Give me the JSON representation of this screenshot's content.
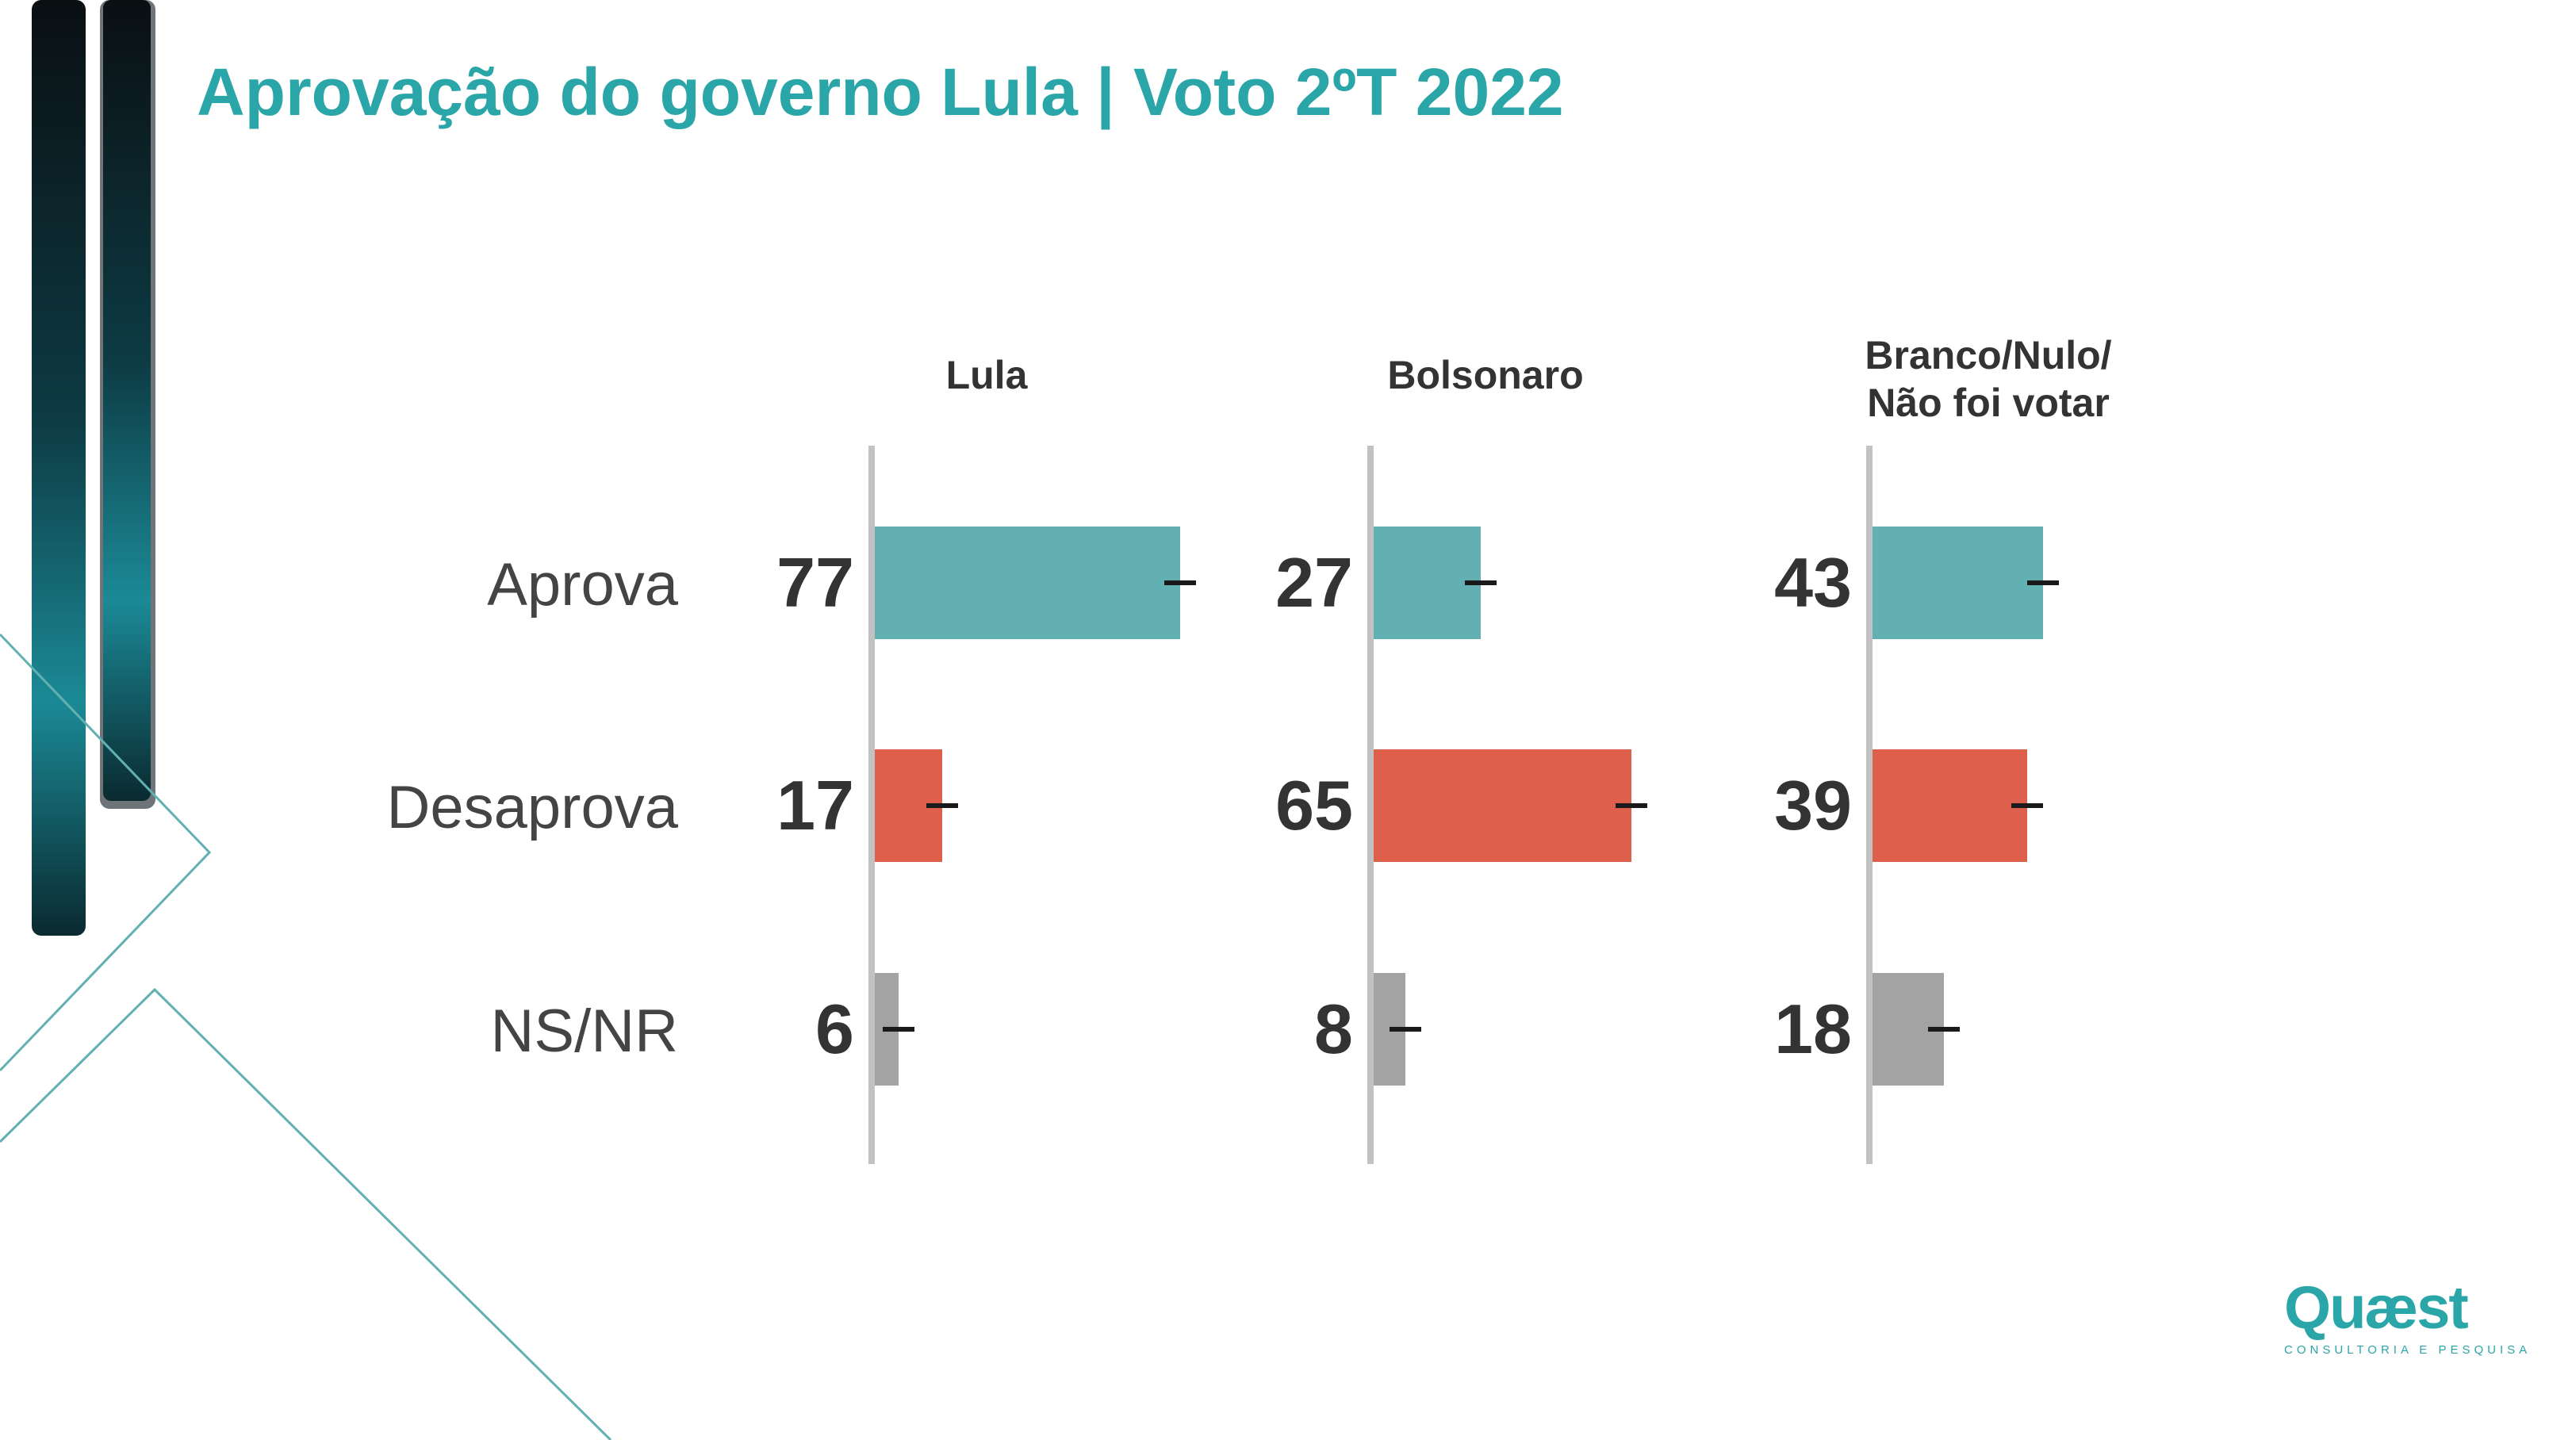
{
  "header": {
    "title": "Aprovação do governo Lula | Voto 2ºT 2022"
  },
  "chart_data": {
    "type": "bar",
    "orientation": "horizontal",
    "categories": [
      "Aprova",
      "Desaprova",
      "NS/NR"
    ],
    "panels": [
      {
        "name": "Lula",
        "values": [
          77,
          17,
          6
        ],
        "labels": [
          "77",
          "17",
          "6"
        ]
      },
      {
        "name": "Bolsonaro",
        "values": [
          27,
          65,
          8
        ],
        "labels": [
          "27",
          "65",
          "8"
        ]
      },
      {
        "name": "Branco/Nulo/\nNão foi votar",
        "values": [
          43,
          39,
          18
        ],
        "labels": [
          "43",
          "39",
          "18"
        ]
      }
    ],
    "colors": {
      "Aprova": "#63b0b2",
      "Desaprova": "#de604c",
      "NS/NR": "#a3a3a3"
    },
    "error_bars": true,
    "xlim": [
      0,
      100
    ],
    "grid": false,
    "legend": "none"
  },
  "logo": {
    "text": "Quæst",
    "tagline": "CONSULTORIA E PESQUISA"
  }
}
